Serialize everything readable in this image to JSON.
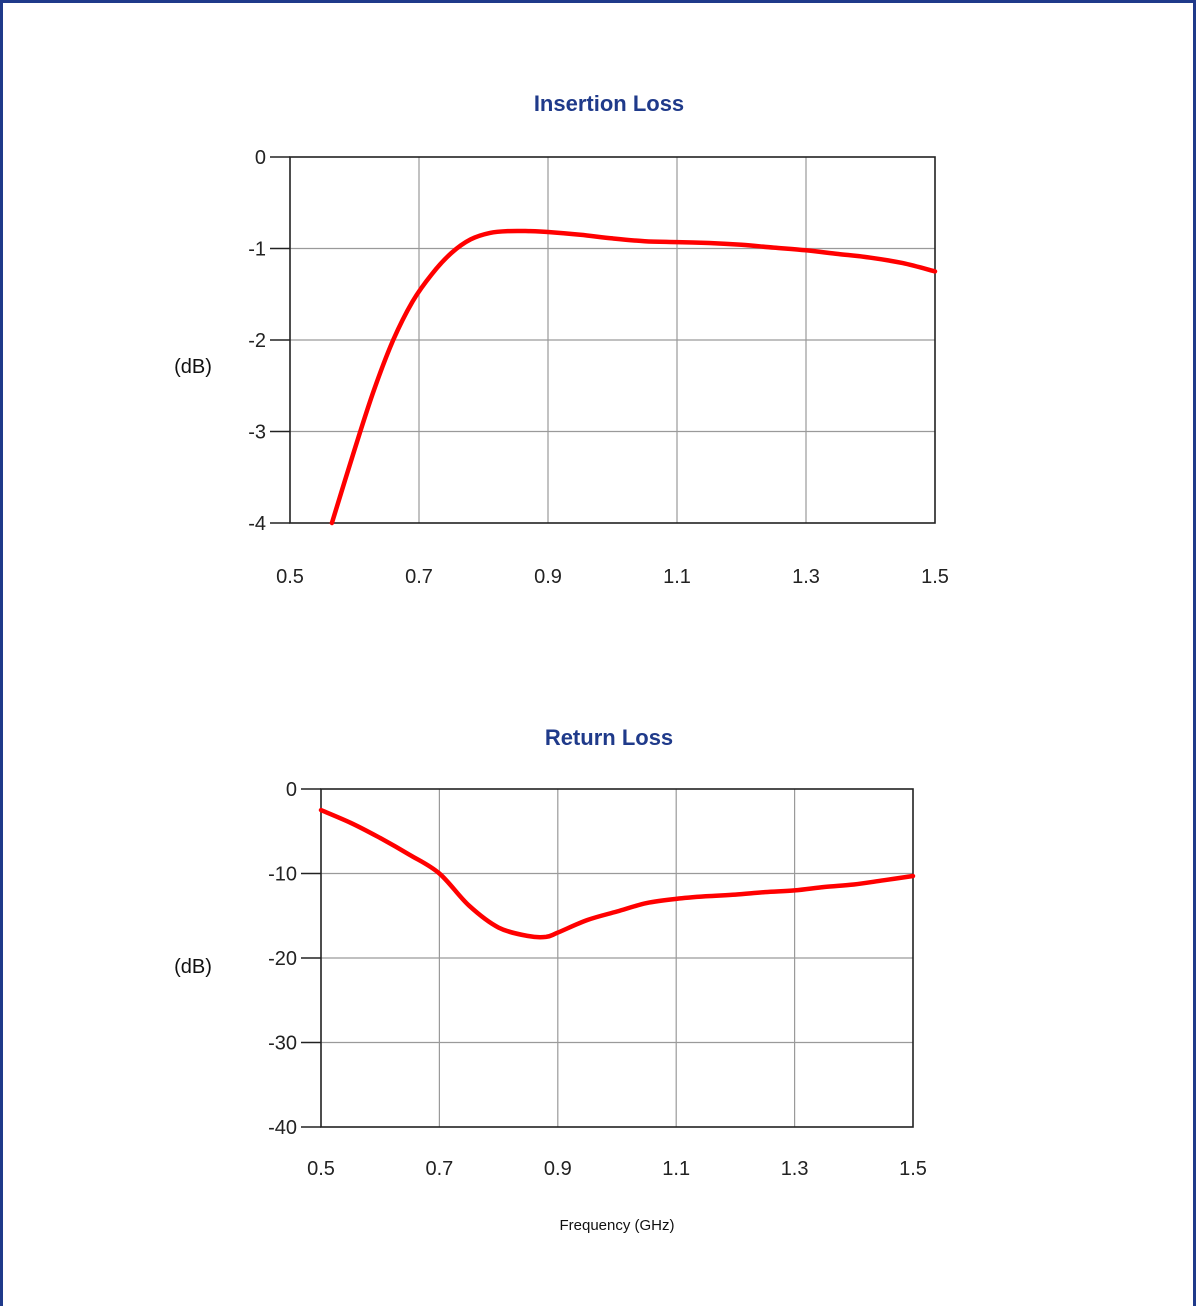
{
  "colors": {
    "border": "#1f3a8a",
    "title": "#1f3a8a",
    "curve": "#ff0000",
    "grid": "#9a9a9a",
    "axis": "#222222"
  },
  "chart_data": [
    {
      "type": "line",
      "title": "Insertion Loss",
      "ylabel": "(dB)",
      "xlabel": "",
      "xlim": [
        0.5,
        1.5
      ],
      "ylim": [
        -4,
        0
      ],
      "xticks": [
        "0.5",
        "0.7",
        "0.9",
        "1.1",
        "1.3",
        "1.5"
      ],
      "yticks": [
        "0",
        "-1",
        "-2",
        "-3",
        "-4"
      ],
      "grid": true,
      "series": [
        {
          "x": [
            0.565,
            0.6,
            0.63,
            0.66,
            0.69,
            0.72,
            0.75,
            0.78,
            0.81,
            0.84,
            0.87,
            0.9,
            0.95,
            1.0,
            1.05,
            1.1,
            1.15,
            1.2,
            1.25,
            1.3,
            1.35,
            1.4,
            1.45,
            1.5
          ],
          "y": [
            -4.0,
            -3.2,
            -2.55,
            -2.0,
            -1.58,
            -1.28,
            -1.05,
            -0.9,
            -0.83,
            -0.81,
            -0.81,
            -0.82,
            -0.85,
            -0.89,
            -0.92,
            -0.93,
            -0.94,
            -0.96,
            -0.99,
            -1.02,
            -1.06,
            -1.1,
            -1.16,
            -1.25
          ]
        }
      ]
    },
    {
      "type": "line",
      "title": "Return Loss",
      "ylabel": "(dB)",
      "xlabel": "Frequency (GHz)",
      "xlim": [
        0.5,
        1.5
      ],
      "ylim": [
        -40,
        0
      ],
      "xticks": [
        "0.5",
        "0.7",
        "0.9",
        "1.1",
        "1.3",
        "1.5"
      ],
      "yticks": [
        "0",
        "-10",
        "-20",
        "-30",
        "-40"
      ],
      "grid": true,
      "series": [
        {
          "x": [
            0.5,
            0.55,
            0.6,
            0.65,
            0.7,
            0.75,
            0.8,
            0.85,
            0.88,
            0.9,
            0.95,
            1.0,
            1.05,
            1.1,
            1.15,
            1.2,
            1.25,
            1.3,
            1.35,
            1.4,
            1.45,
            1.5
          ],
          "y": [
            -2.5,
            -4.0,
            -5.8,
            -7.8,
            -10.0,
            -13.8,
            -16.4,
            -17.4,
            -17.5,
            -17.0,
            -15.5,
            -14.5,
            -13.5,
            -13.0,
            -12.7,
            -12.5,
            -12.2,
            -12.0,
            -11.6,
            -11.3,
            -10.8,
            -10.3
          ]
        }
      ]
    }
  ]
}
